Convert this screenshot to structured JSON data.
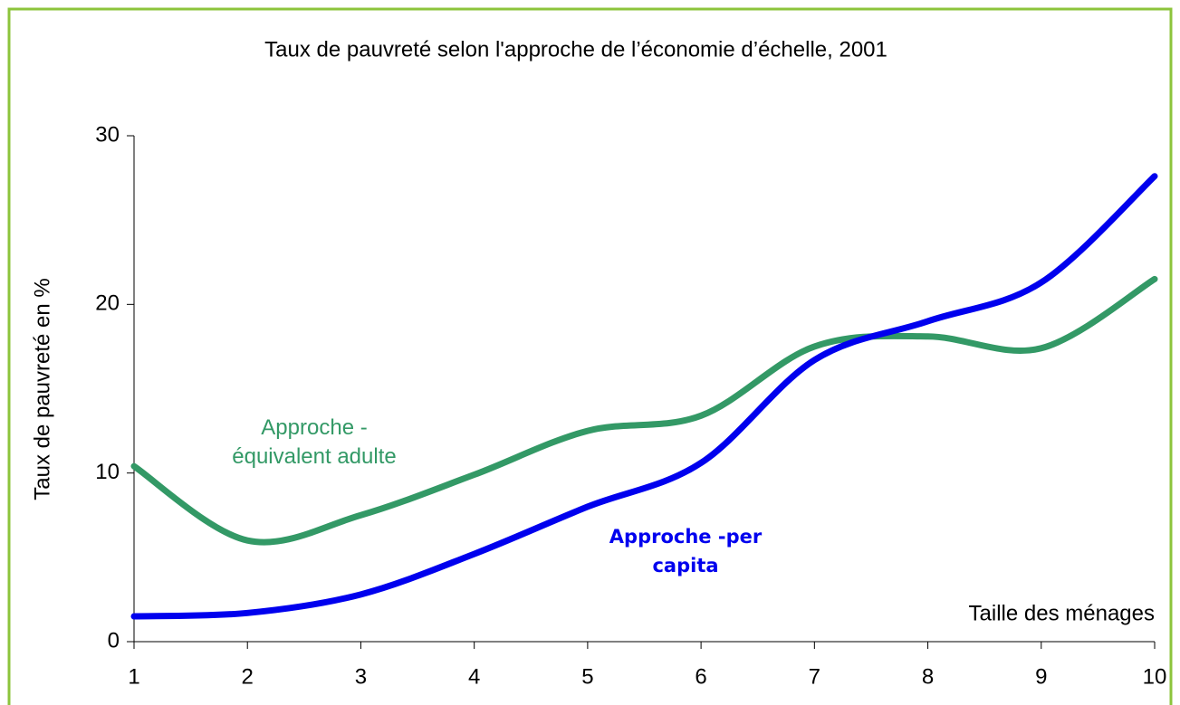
{
  "chart_data": {
    "type": "line",
    "title": "Taux de pauvreté selon l'approche de l’économie d’échelle, 2001",
    "xlabel": "Taille des ménages",
    "ylabel": "Taux de pauvreté en %",
    "x": [
      1,
      2,
      3,
      4,
      5,
      6,
      7,
      8,
      9,
      10
    ],
    "series": [
      {
        "name": "Approche - équivalent adulte",
        "color": "#339966",
        "values": [
          10.4,
          6.0,
          7.5,
          9.9,
          12.5,
          13.4,
          17.5,
          18.1,
          17.4,
          21.5
        ]
      },
      {
        "name": "Approche -per capita",
        "color": "#0000ee",
        "values": [
          1.5,
          1.7,
          2.8,
          5.2,
          8.0,
          10.6,
          16.7,
          19.0,
          21.3,
          27.6
        ]
      }
    ],
    "xlim": [
      1,
      10
    ],
    "xticks": [
      1,
      2,
      3,
      4,
      5,
      6,
      7,
      8,
      9,
      10
    ],
    "ylim": [
      0,
      30
    ],
    "yticks": [
      0,
      10,
      20,
      30
    ],
    "grid": false
  }
}
